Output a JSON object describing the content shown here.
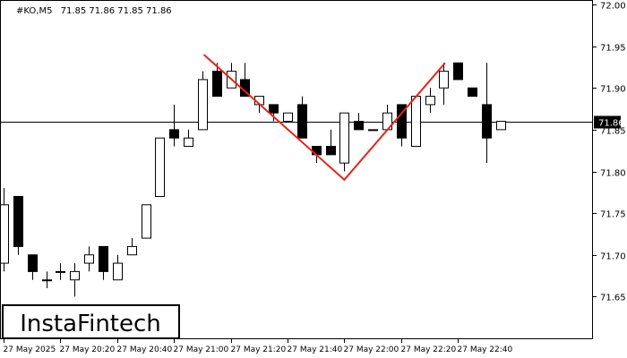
{
  "header": {
    "symbol": "#KO,M5",
    "ohlc": "71.85 71.86 71.85 71.86"
  },
  "logo": {
    "text": "InstaFintech"
  },
  "current_price_label": "71.86",
  "colors": {
    "bull_fill": "#ffffff",
    "bear_fill": "#000000",
    "candle_outline": "#000000",
    "pattern_line": "#e8231b",
    "price_line": "#000000",
    "label_bg": "#000000",
    "label_text": "#ffffff"
  },
  "chart_data": {
    "type": "candlestick",
    "title": "",
    "xlabel": "",
    "ylabel": "",
    "ylim": [
      71.6,
      72.0
    ],
    "y_ticks": [
      "72.00",
      "71.95",
      "71.90",
      "71.85",
      "71.80",
      "71.75",
      "71.70",
      "71.65"
    ],
    "x_ticks": [
      "27 May 2025",
      "27 May 20:20",
      "27 May 20:40",
      "27 May 21:00",
      "27 May 21:20",
      "27 May 21:40",
      "27 May 22:00",
      "27 May 22:20",
      "27 May 22:40"
    ],
    "current_price": 71.86,
    "candles": [
      {
        "o": 71.69,
        "h": 71.78,
        "l": 71.68,
        "c": 71.76
      },
      {
        "o": 71.77,
        "h": 71.77,
        "l": 71.7,
        "c": 71.71
      },
      {
        "o": 71.7,
        "h": 71.7,
        "l": 71.67,
        "c": 71.68
      },
      {
        "o": 71.67,
        "h": 71.68,
        "l": 71.66,
        "c": 71.67
      },
      {
        "o": 71.68,
        "h": 71.69,
        "l": 71.67,
        "c": 71.68
      },
      {
        "o": 71.67,
        "h": 71.69,
        "l": 71.65,
        "c": 71.68
      },
      {
        "o": 71.69,
        "h": 71.71,
        "l": 71.68,
        "c": 71.7
      },
      {
        "o": 71.71,
        "h": 71.71,
        "l": 71.67,
        "c": 71.68
      },
      {
        "o": 71.67,
        "h": 71.7,
        "l": 71.67,
        "c": 71.69
      },
      {
        "o": 71.7,
        "h": 71.72,
        "l": 71.7,
        "c": 71.71
      },
      {
        "o": 71.72,
        "h": 71.76,
        "l": 71.72,
        "c": 71.76
      },
      {
        "o": 71.77,
        "h": 71.84,
        "l": 71.77,
        "c": 71.84
      },
      {
        "o": 71.85,
        "h": 71.88,
        "l": 71.83,
        "c": 71.84
      },
      {
        "o": 71.83,
        "h": 71.85,
        "l": 71.83,
        "c": 71.84
      },
      {
        "o": 71.85,
        "h": 71.92,
        "l": 71.85,
        "c": 71.91
      },
      {
        "o": 71.92,
        "h": 71.93,
        "l": 71.89,
        "c": 71.89
      },
      {
        "o": 71.9,
        "h": 71.93,
        "l": 71.9,
        "c": 71.92
      },
      {
        "o": 71.91,
        "h": 71.93,
        "l": 71.89,
        "c": 71.89
      },
      {
        "o": 71.88,
        "h": 71.89,
        "l": 71.87,
        "c": 71.89
      },
      {
        "o": 71.88,
        "h": 71.88,
        "l": 71.86,
        "c": 71.87
      },
      {
        "o": 71.86,
        "h": 71.87,
        "l": 71.86,
        "c": 71.87
      },
      {
        "o": 71.88,
        "h": 71.89,
        "l": 71.84,
        "c": 71.84
      },
      {
        "o": 71.83,
        "h": 71.83,
        "l": 71.81,
        "c": 71.82
      },
      {
        "o": 71.83,
        "h": 71.85,
        "l": 71.82,
        "c": 71.82
      },
      {
        "o": 71.81,
        "h": 71.87,
        "l": 71.8,
        "c": 71.87
      },
      {
        "o": 71.86,
        "h": 71.87,
        "l": 71.85,
        "c": 71.85
      },
      {
        "o": 71.85,
        "h": 71.85,
        "l": 71.85,
        "c": 71.85
      },
      {
        "o": 71.85,
        "h": 71.88,
        "l": 71.85,
        "c": 71.87
      },
      {
        "o": 71.88,
        "h": 71.88,
        "l": 71.83,
        "c": 71.84
      },
      {
        "o": 71.83,
        "h": 71.89,
        "l": 71.83,
        "c": 71.89
      },
      {
        "o": 71.88,
        "h": 71.9,
        "l": 71.87,
        "c": 71.89
      },
      {
        "o": 71.9,
        "h": 71.93,
        "l": 71.88,
        "c": 71.92
      },
      {
        "o": 71.93,
        "h": 71.93,
        "l": 71.91,
        "c": 71.91
      },
      {
        "o": 71.9,
        "h": 71.9,
        "l": 71.89,
        "c": 71.89
      },
      {
        "o": 71.88,
        "h": 71.93,
        "l": 71.81,
        "c": 71.84
      },
      {
        "o": 71.85,
        "h": 71.86,
        "l": 71.85,
        "c": 71.86
      }
    ],
    "pattern_line": [
      {
        "candle": 14.1,
        "price": 71.94
      },
      {
        "candle": 24.0,
        "price": 71.79
      },
      {
        "candle": 31.1,
        "price": 71.93
      }
    ]
  }
}
